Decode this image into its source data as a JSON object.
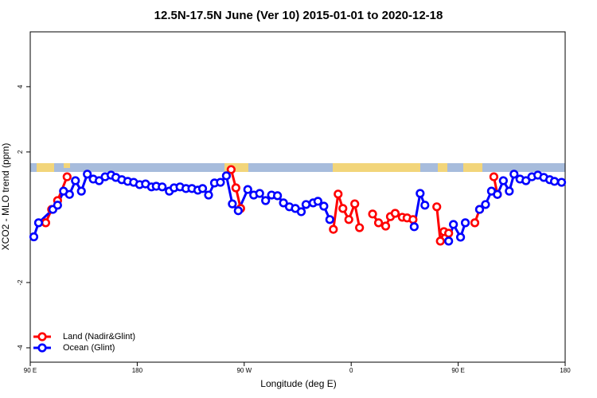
{
  "chart_data": {
    "type": "line",
    "title": "12.5N-17.5N June (Ver 10)   2015-01-01 to 2020-12-18",
    "x_label": "Longitude (deg E)",
    "y_label": "XCO2 - MLO trend (ppm)",
    "xlim": [
      90,
      540
    ],
    "xticks": [
      {
        "value": 90,
        "label": "90 E"
      },
      180,
      {
        "value": 270,
        "label": "90 W"
      },
      {
        "value": 360,
        "label": "0"
      },
      {
        "value": 450,
        "label": "90 E"
      },
      {
        "value": 540,
        "label": "180"
      }
    ],
    "ylim": [
      -4.44,
      5.68
    ],
    "yticks": [
      -4,
      -2,
      2,
      4
    ],
    "grid": false,
    "legend": "bottom-left",
    "series": [
      {
        "name": "Land (Nadir&Glint)",
        "color": "#ff0000",
        "x": [
          103,
          108,
          113,
          121,
          null,
          259,
          263,
          267,
          null,
          345,
          349,
          353,
          358,
          363,
          367,
          null,
          378,
          383,
          389,
          393,
          397,
          403,
          407,
          412,
          null,
          432,
          435,
          438,
          442,
          null,
          464,
          468,
          null,
          480,
          483
        ],
        "values": [
          -0.17,
          0.24,
          0.51,
          1.24,
          null,
          1.46,
          0.9,
          0.27,
          null,
          -0.37,
          0.71,
          0.27,
          -0.07,
          0.41,
          -0.32,
          null,
          0.1,
          -0.17,
          -0.27,
          0.02,
          0.12,
          0,
          -0.02,
          -0.07,
          null,
          0.32,
          -0.73,
          -0.44,
          -0.49,
          null,
          -0.17,
          0.24,
          null,
          1.24,
          0.7
        ]
      },
      {
        "name": "Ocean (Glint)",
        "color": "#0000ff",
        "x": [
          93,
          97,
          109,
          113,
          118,
          123,
          128,
          133,
          138,
          143,
          148,
          153,
          158,
          162,
          167,
          172,
          177,
          182,
          187,
          192,
          196,
          201,
          207,
          211,
          216,
          221,
          226,
          231,
          235,
          240,
          245,
          250,
          255,
          260,
          265,
          273,
          278,
          283,
          288,
          293,
          298,
          303,
          308,
          313,
          318,
          322,
          328,
          332,
          337,
          342,
          null,
          413,
          418,
          422,
          null,
          442,
          446,
          452,
          456,
          null,
          468,
          473,
          478,
          483,
          488,
          493,
          497,
          502,
          507,
          512,
          517,
          522,
          527,
          531,
          537
        ],
        "values": [
          -0.6,
          -0.17,
          0.24,
          0.37,
          0.8,
          0.7,
          1.12,
          0.8,
          1.32,
          1.17,
          1.12,
          1.24,
          1.29,
          1.22,
          1.15,
          1.1,
          1.07,
          1.0,
          1.02,
          0.93,
          0.95,
          0.93,
          0.8,
          0.9,
          0.93,
          0.88,
          0.88,
          0.83,
          0.88,
          0.68,
          1.05,
          1.07,
          1.27,
          0.41,
          0.2,
          0.85,
          0.68,
          0.73,
          0.51,
          0.68,
          0.66,
          0.44,
          0.32,
          0.27,
          0.17,
          0.39,
          0.44,
          0.49,
          0.34,
          -0.07,
          null,
          -0.29,
          0.73,
          0.37,
          null,
          -0.73,
          -0.22,
          -0.61,
          -0.17,
          null,
          0.24,
          0.39,
          0.8,
          0.7,
          1.12,
          0.8,
          1.32,
          1.17,
          1.12,
          1.24,
          1.29,
          1.22,
          1.15,
          1.1,
          1.07
        ]
      }
    ]
  }
}
